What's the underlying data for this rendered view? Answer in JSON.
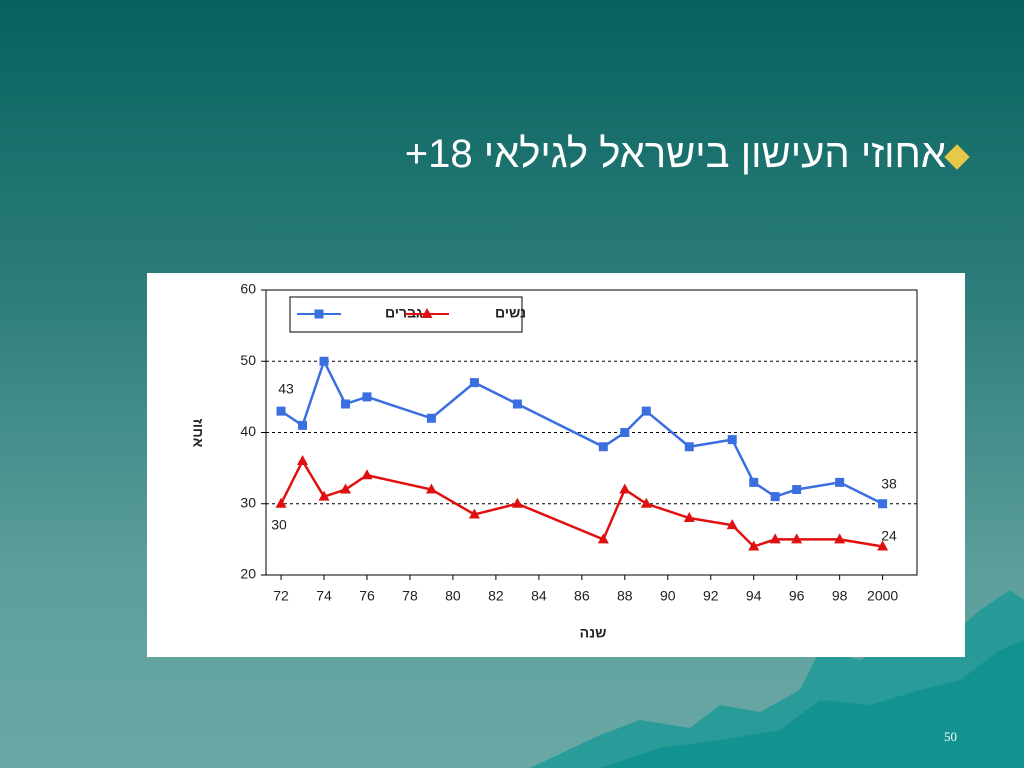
{
  "title": "אחוזי העישון בישראל לגילאי 18+",
  "page_number": "50",
  "chart_data": {
    "type": "line",
    "x": [
      72,
      73,
      74,
      75,
      76,
      79,
      81,
      83,
      87,
      88,
      89,
      91,
      93,
      94,
      95,
      96,
      98,
      100
    ],
    "series": [
      {
        "name": "גברים",
        "color": "#3a6fe0",
        "marker": "square",
        "values": [
          43,
          41,
          50,
          44,
          45,
          42,
          47,
          44,
          38,
          40,
          43,
          38,
          39,
          33,
          31,
          32,
          33,
          30
        ]
      },
      {
        "name": "נשים",
        "color": "#e01010",
        "marker": "triangle",
        "values": [
          30,
          36,
          31,
          32,
          34,
          32,
          28.5,
          30,
          25,
          32,
          30,
          28,
          27,
          24,
          25,
          25,
          25,
          24
        ]
      }
    ],
    "xlim": [
      71.3,
      101.6
    ],
    "xticks": [
      72,
      74,
      76,
      78,
      80,
      82,
      84,
      86,
      88,
      90,
      92,
      94,
      96,
      98,
      {
        "value": 100,
        "label": "2000"
      }
    ],
    "ylim": [
      20,
      60
    ],
    "yticks": [
      20,
      30,
      40,
      50,
      60
    ],
    "grid": true,
    "xlabel": "שנה",
    "ylabel": "אחוז",
    "annotations": [
      "43",
      "30",
      "38",
      "24"
    ]
  }
}
